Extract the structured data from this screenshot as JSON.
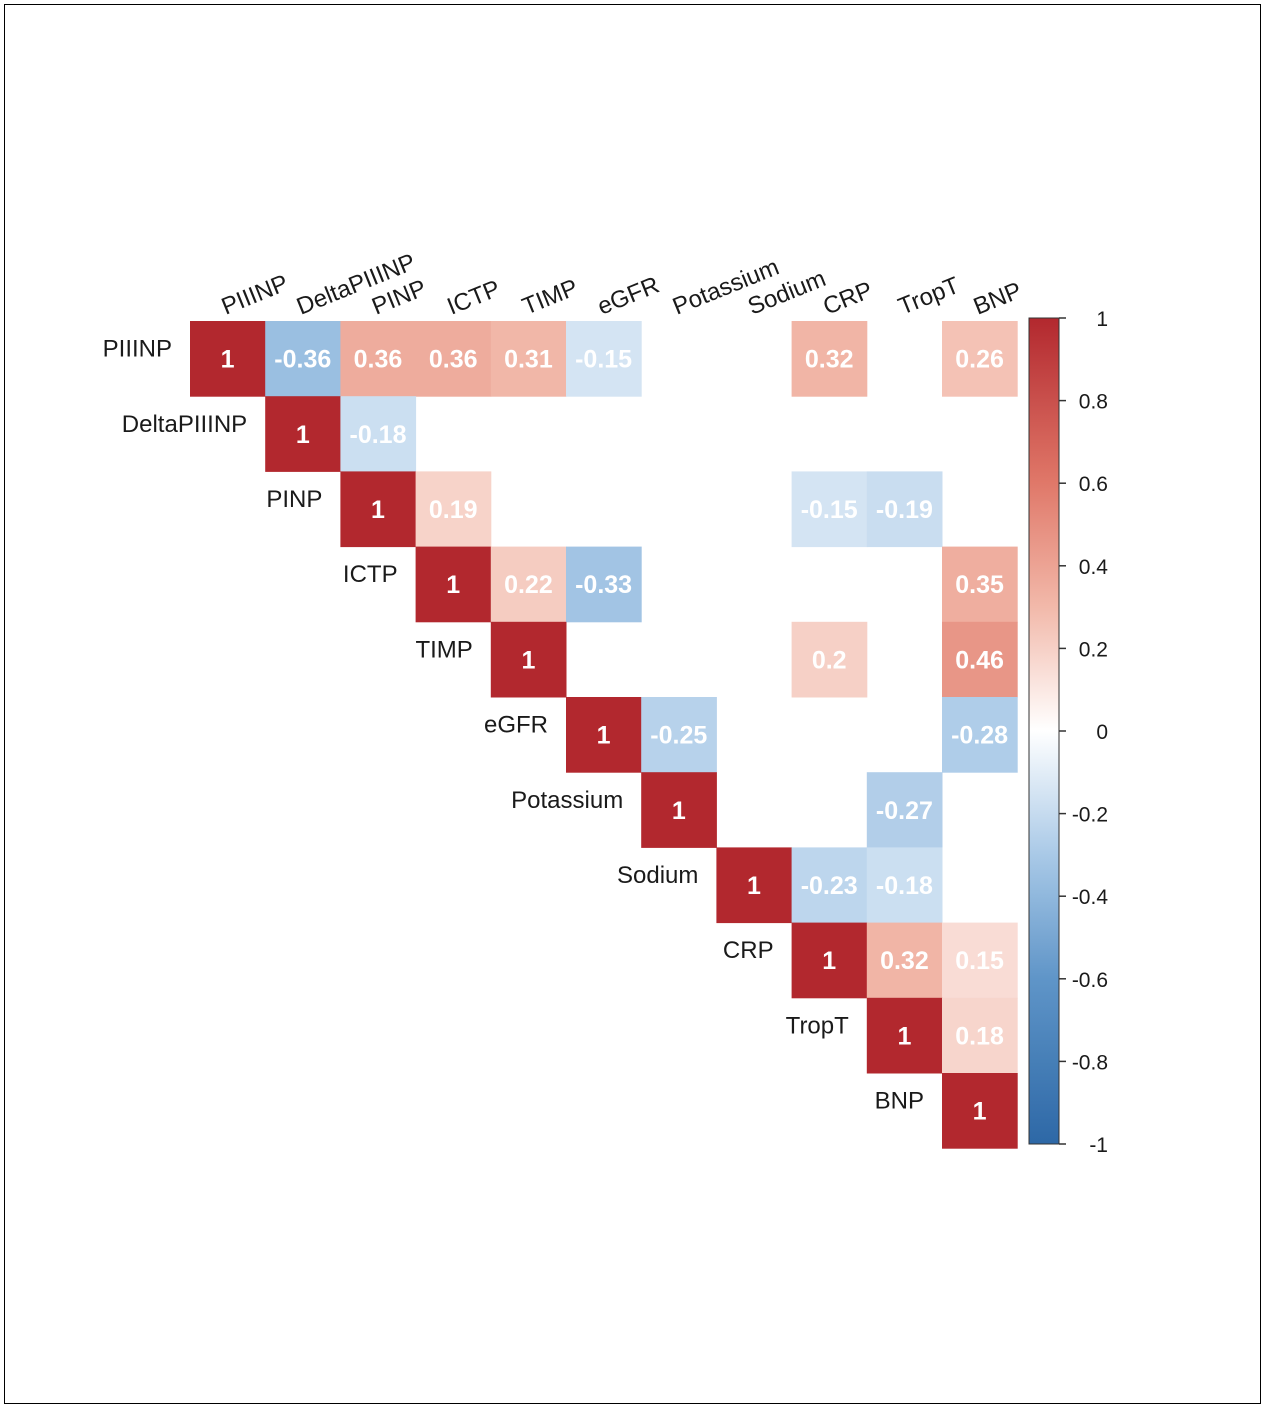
{
  "chart_data": {
    "type": "heatmap",
    "variables": [
      "PIIINP",
      "DeltaPIIINP",
      "PINP",
      "ICTP",
      "TIMP",
      "eGFR",
      "Potassium",
      "Sodium",
      "CRP",
      "TropT",
      "BNP"
    ],
    "layout": "upper-triangle",
    "cells": [
      {
        "row": "PIIINP",
        "col": "PIIINP",
        "value": 1
      },
      {
        "row": "PIIINP",
        "col": "DeltaPIIINP",
        "value": -0.36
      },
      {
        "row": "PIIINP",
        "col": "PINP",
        "value": 0.36
      },
      {
        "row": "PIIINP",
        "col": "ICTP",
        "value": 0.36
      },
      {
        "row": "PIIINP",
        "col": "TIMP",
        "value": 0.31
      },
      {
        "row": "PIIINP",
        "col": "eGFR",
        "value": -0.15
      },
      {
        "row": "PIIINP",
        "col": "CRP",
        "value": 0.32
      },
      {
        "row": "PIIINP",
        "col": "BNP",
        "value": 0.26
      },
      {
        "row": "DeltaPIIINP",
        "col": "DeltaPIIINP",
        "value": 1
      },
      {
        "row": "DeltaPIIINP",
        "col": "PINP",
        "value": -0.18
      },
      {
        "row": "PINP",
        "col": "PINP",
        "value": 1
      },
      {
        "row": "PINP",
        "col": "ICTP",
        "value": 0.19
      },
      {
        "row": "PINP",
        "col": "CRP",
        "value": -0.15
      },
      {
        "row": "PINP",
        "col": "TropT",
        "value": -0.19
      },
      {
        "row": "ICTP",
        "col": "ICTP",
        "value": 1
      },
      {
        "row": "ICTP",
        "col": "TIMP",
        "value": 0.22
      },
      {
        "row": "ICTP",
        "col": "eGFR",
        "value": -0.33
      },
      {
        "row": "ICTP",
        "col": "BNP",
        "value": 0.35
      },
      {
        "row": "TIMP",
        "col": "TIMP",
        "value": 1
      },
      {
        "row": "TIMP",
        "col": "CRP",
        "value": 0.2
      },
      {
        "row": "TIMP",
        "col": "BNP",
        "value": 0.46
      },
      {
        "row": "eGFR",
        "col": "eGFR",
        "value": 1
      },
      {
        "row": "eGFR",
        "col": "Potassium",
        "value": -0.25
      },
      {
        "row": "eGFR",
        "col": "BNP",
        "value": -0.28
      },
      {
        "row": "Potassium",
        "col": "Potassium",
        "value": 1
      },
      {
        "row": "Potassium",
        "col": "TropT",
        "value": -0.27
      },
      {
        "row": "Sodium",
        "col": "Sodium",
        "value": 1
      },
      {
        "row": "Sodium",
        "col": "CRP",
        "value": -0.23
      },
      {
        "row": "Sodium",
        "col": "TropT",
        "value": -0.18
      },
      {
        "row": "CRP",
        "col": "CRP",
        "value": 1
      },
      {
        "row": "CRP",
        "col": "TropT",
        "value": 0.32
      },
      {
        "row": "CRP",
        "col": "BNP",
        "value": 0.15
      },
      {
        "row": "TropT",
        "col": "TropT",
        "value": 1
      },
      {
        "row": "TropT",
        "col": "BNP",
        "value": 0.18
      },
      {
        "row": "BNP",
        "col": "BNP",
        "value": 1
      }
    ],
    "colorbar": {
      "range": [
        -1,
        1
      ],
      "ticks": [
        "1",
        "0.8",
        "0.6",
        "0.4",
        "0.2",
        "0",
        "-0.2",
        "-0.4",
        "-0.6",
        "-0.8",
        "-1"
      ],
      "colors": {
        "negative": "#2f6aa8",
        "zero": "#ffffff",
        "positive": "#b2282e"
      }
    }
  }
}
